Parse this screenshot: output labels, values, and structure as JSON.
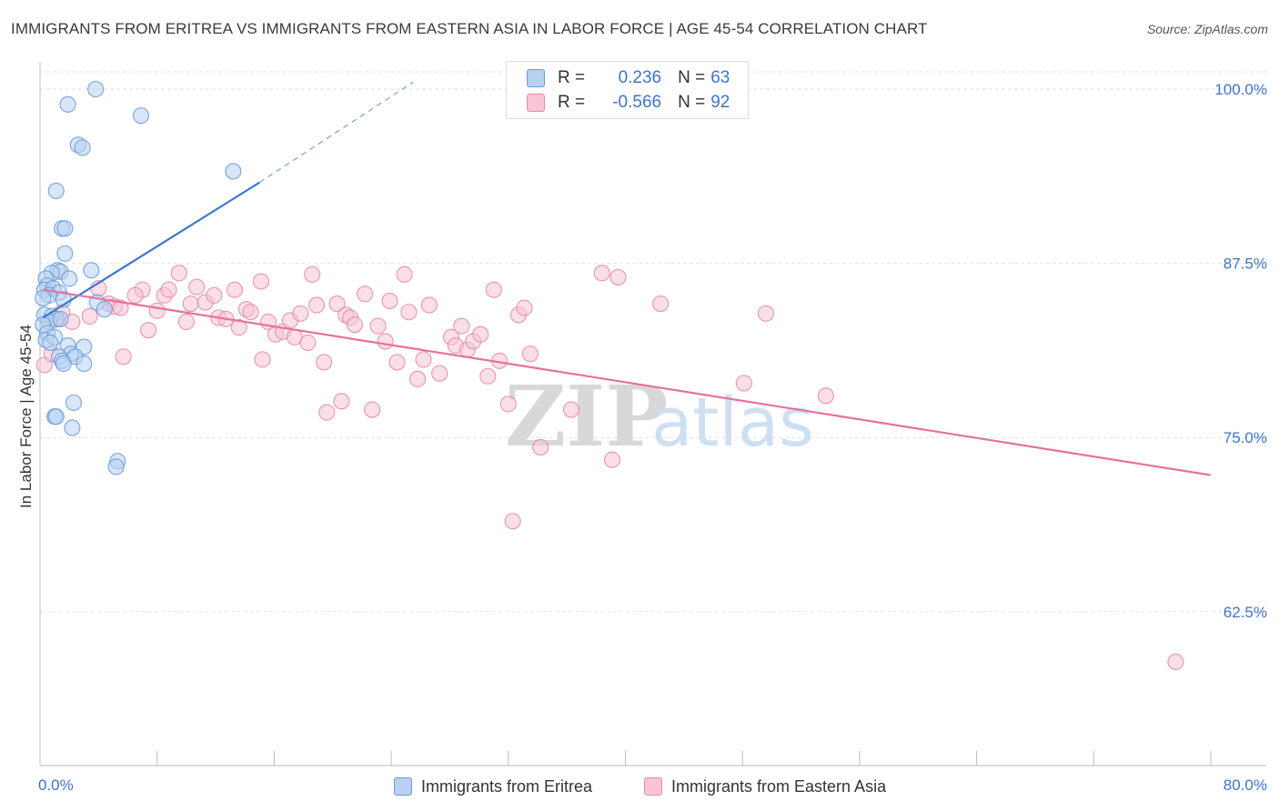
{
  "title": "IMMIGRANTS FROM ERITREA VS IMMIGRANTS FROM EASTERN ASIA IN LABOR FORCE | AGE 45-54 CORRELATION CHART",
  "source": "Source: ZipAtlas.com",
  "watermark": {
    "zip": "ZIP",
    "atlas": "atlas"
  },
  "legend": {
    "r_label": "R =",
    "n_label": "N =",
    "rows": [
      {
        "r": "0.236",
        "n": "63",
        "color": "#6a9bd8"
      },
      {
        "r": "-0.566",
        "n": "92",
        "color": "#e48aaa"
      }
    ]
  },
  "colors": {
    "blue": "#3a78d0",
    "pink": "#e8709a",
    "blue_fill": "#b7d1f2",
    "pink_fill": "#f8c4d6",
    "tick_label": "#3f73c9"
  },
  "chart_data": {
    "type": "scatter",
    "title": "IMMIGRANTS FROM ERITREA VS IMMIGRANTS FROM EASTERN ASIA IN LABOR FORCE | AGE 45-54 CORRELATION CHART",
    "xlabel": "",
    "ylabel": "In Labor Force | Age 45-54",
    "xlim": [
      0,
      80
    ],
    "ylim": [
      50.5,
      101.5
    ],
    "x_tick_labels": [
      "0.0%",
      "80.0%"
    ],
    "y_ticks": [
      62.5,
      75.0,
      87.5,
      100.0
    ],
    "y_tick_labels": [
      "62.5%",
      "75.0%",
      "87.5%",
      "100.0%"
    ],
    "grid": true,
    "legend_position": "top-center",
    "series": [
      {
        "name": "Immigrants from Eritrea",
        "color": "#6a9bd8",
        "trend": {
          "x": [
            0.2,
            15.0
          ],
          "y": [
            83.6,
            93.3
          ],
          "extension_to": [
            25.5,
            100.5
          ]
        },
        "points": [
          [
            3.8,
            100.0
          ],
          [
            1.9,
            98.9
          ],
          [
            6.9,
            98.1
          ],
          [
            2.6,
            96.0
          ],
          [
            2.9,
            95.8
          ],
          [
            13.2,
            94.1
          ],
          [
            1.1,
            92.7
          ],
          [
            1.5,
            90.0
          ],
          [
            1.7,
            90.0
          ],
          [
            1.7,
            88.2
          ],
          [
            1.2,
            87.0
          ],
          [
            1.4,
            86.9
          ],
          [
            3.5,
            87.0
          ],
          [
            0.8,
            86.8
          ],
          [
            0.4,
            86.4
          ],
          [
            2.0,
            86.4
          ],
          [
            0.5,
            85.9
          ],
          [
            0.3,
            85.6
          ],
          [
            0.9,
            85.7
          ],
          [
            1.3,
            85.4
          ],
          [
            0.6,
            85.2
          ],
          [
            0.2,
            85.0
          ],
          [
            1.6,
            84.9
          ],
          [
            3.9,
            84.7
          ],
          [
            4.4,
            84.2
          ],
          [
            0.3,
            83.8
          ],
          [
            0.8,
            83.7
          ],
          [
            1.1,
            83.5
          ],
          [
            0.6,
            83.3
          ],
          [
            1.4,
            83.5
          ],
          [
            0.2,
            83.1
          ],
          [
            0.5,
            82.5
          ],
          [
            0.4,
            82.0
          ],
          [
            1.0,
            82.2
          ],
          [
            0.7,
            81.8
          ],
          [
            1.9,
            81.6
          ],
          [
            3.0,
            81.5
          ],
          [
            2.1,
            81.0
          ],
          [
            1.3,
            80.8
          ],
          [
            2.4,
            80.8
          ],
          [
            1.5,
            80.5
          ],
          [
            1.6,
            80.3
          ],
          [
            3.0,
            80.3
          ],
          [
            2.3,
            77.5
          ],
          [
            1.0,
            76.5
          ],
          [
            1.1,
            76.5
          ],
          [
            2.2,
            75.7
          ],
          [
            5.3,
            73.3
          ],
          [
            5.2,
            72.9
          ]
        ]
      },
      {
        "name": "Immigrants from Eastern Asia",
        "color": "#e48aaa",
        "trend": {
          "x": [
            0.2,
            80.0
          ],
          "y": [
            85.6,
            72.3
          ]
        },
        "points": [
          [
            0.3,
            80.2
          ],
          [
            0.8,
            81.0
          ],
          [
            1.2,
            83.5
          ],
          [
            2.2,
            83.3
          ],
          [
            3.4,
            83.7
          ],
          [
            1.5,
            84.0
          ],
          [
            4.0,
            85.7
          ],
          [
            4.7,
            84.6
          ],
          [
            5.1,
            84.4
          ],
          [
            5.5,
            84.3
          ],
          [
            7.0,
            85.6
          ],
          [
            6.5,
            85.2
          ],
          [
            5.7,
            80.8
          ],
          [
            7.4,
            82.7
          ],
          [
            8.0,
            84.1
          ],
          [
            8.5,
            85.2
          ],
          [
            8.8,
            85.6
          ],
          [
            9.5,
            86.8
          ],
          [
            10.0,
            83.3
          ],
          [
            10.3,
            84.6
          ],
          [
            10.7,
            85.8
          ],
          [
            11.3,
            84.7
          ],
          [
            11.9,
            85.2
          ],
          [
            12.2,
            83.6
          ],
          [
            12.7,
            83.5
          ],
          [
            13.3,
            85.6
          ],
          [
            13.6,
            82.9
          ],
          [
            14.1,
            84.2
          ],
          [
            14.4,
            84.0
          ],
          [
            15.1,
            86.2
          ],
          [
            15.2,
            80.6
          ],
          [
            15.6,
            83.3
          ],
          [
            16.1,
            82.4
          ],
          [
            16.6,
            82.6
          ],
          [
            17.1,
            83.4
          ],
          [
            17.4,
            82.2
          ],
          [
            17.8,
            83.9
          ],
          [
            18.3,
            81.8
          ],
          [
            18.6,
            86.7
          ],
          [
            18.9,
            84.5
          ],
          [
            19.4,
            80.4
          ],
          [
            19.6,
            76.8
          ],
          [
            20.3,
            84.6
          ],
          [
            20.6,
            77.6
          ],
          [
            20.9,
            83.8
          ],
          [
            21.2,
            83.6
          ],
          [
            21.5,
            83.1
          ],
          [
            22.2,
            85.3
          ],
          [
            22.7,
            77.0
          ],
          [
            23.1,
            83.0
          ],
          [
            23.6,
            81.9
          ],
          [
            23.9,
            84.8
          ],
          [
            24.4,
            80.4
          ],
          [
            24.9,
            86.7
          ],
          [
            25.2,
            84.0
          ],
          [
            25.8,
            79.2
          ],
          [
            26.2,
            80.6
          ],
          [
            26.6,
            84.5
          ],
          [
            27.3,
            79.6
          ],
          [
            28.1,
            82.2
          ],
          [
            28.4,
            81.6
          ],
          [
            28.8,
            83.0
          ],
          [
            29.2,
            81.3
          ],
          [
            29.6,
            81.9
          ],
          [
            30.1,
            82.4
          ],
          [
            30.6,
            79.4
          ],
          [
            31.0,
            85.6
          ],
          [
            31.4,
            80.5
          ],
          [
            32.0,
            77.4
          ],
          [
            32.3,
            69.0
          ],
          [
            32.7,
            83.8
          ],
          [
            33.1,
            84.3
          ],
          [
            33.5,
            81.0
          ],
          [
            34.2,
            74.3
          ],
          [
            36.3,
            77.0
          ],
          [
            38.4,
            86.8
          ],
          [
            39.1,
            73.4
          ],
          [
            39.5,
            86.5
          ],
          [
            42.4,
            84.6
          ],
          [
            48.1,
            78.9
          ],
          [
            49.6,
            83.9
          ],
          [
            53.7,
            78.0
          ],
          [
            77.6,
            58.9
          ]
        ]
      }
    ]
  },
  "bottom_legend": [
    {
      "label": "Immigrants from Eritrea"
    },
    {
      "label": "Immigrants from Eastern Asia"
    }
  ]
}
